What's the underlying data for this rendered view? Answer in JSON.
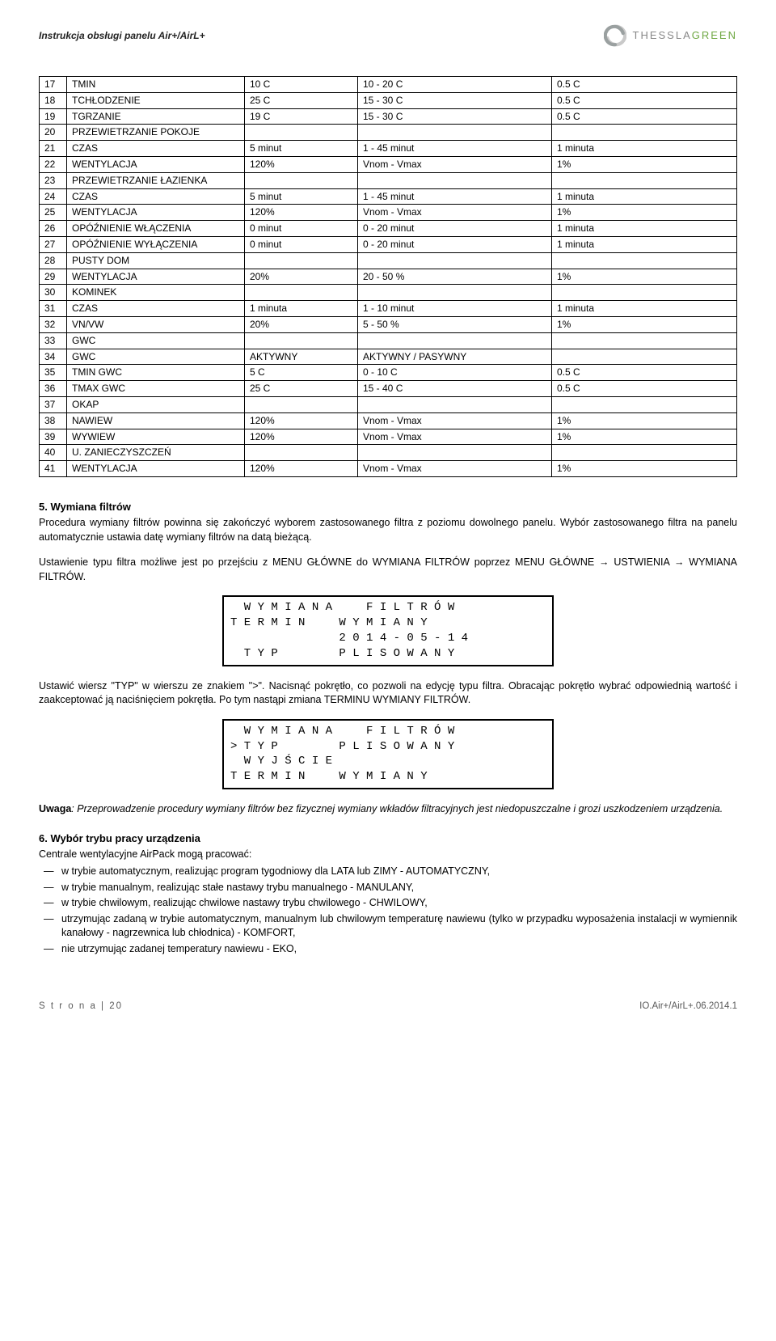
{
  "header": {
    "title_left": "Instrukcja obsługi panelu Air+/AirL+",
    "brand_a": "THESSLA",
    "brand_b": "GREEN"
  },
  "table": {
    "rows": [
      {
        "n": "17",
        "name": "TMIN",
        "v1": "10 C",
        "v2": "10 - 20 C",
        "v3": "0.5 C"
      },
      {
        "n": "18",
        "name": "TCHŁODZENIE",
        "v1": "25 C",
        "v2": "15 - 30 C",
        "v3": "0.5 C"
      },
      {
        "n": "19",
        "name": "TGRZANIE",
        "v1": "19 C",
        "v2": "15 - 30 C",
        "v3": "0.5 C"
      },
      {
        "n": "20",
        "name": "PRZEWIETRZANIE POKOJE",
        "v1": "",
        "v2": "",
        "v3": ""
      },
      {
        "n": "21",
        "name": "CZAS",
        "v1": "5 minut",
        "v2": "1 - 45 minut",
        "v3": "1 minuta"
      },
      {
        "n": "22",
        "name": "WENTYLACJA",
        "v1": "120%",
        "v2": "Vnom - Vmax",
        "v3": "1%"
      },
      {
        "n": "23",
        "name": "PRZEWIETRZANIE ŁAZIENKA",
        "v1": "",
        "v2": "",
        "v3": ""
      },
      {
        "n": "24",
        "name": "CZAS",
        "v1": "5 minut",
        "v2": "1 - 45 minut",
        "v3": "1 minuta"
      },
      {
        "n": "25",
        "name": "WENTYLACJA",
        "v1": "120%",
        "v2": "Vnom - Vmax",
        "v3": "1%"
      },
      {
        "n": "26",
        "name": "OPÓŹNIENIE WŁĄCZENIA",
        "v1": "0 minut",
        "v2": "0 - 20 minut",
        "v3": "1 minuta"
      },
      {
        "n": "27",
        "name": "OPÓŹNIENIE WYŁĄCZENIA",
        "v1": "0 minut",
        "v2": "0 - 20 minut",
        "v3": "1 minuta"
      },
      {
        "n": "28",
        "name": "PUSTY DOM",
        "v1": "",
        "v2": "",
        "v3": ""
      },
      {
        "n": "29",
        "name": "WENTYLACJA",
        "v1": "20%",
        "v2": "20 - 50 %",
        "v3": "1%"
      },
      {
        "n": "30",
        "name": "KOMINEK",
        "v1": "",
        "v2": "",
        "v3": ""
      },
      {
        "n": "31",
        "name": "CZAS",
        "v1": "1 minuta",
        "v2": "1 - 10 minut",
        "v3": "1 minuta"
      },
      {
        "n": "32",
        "name": "VN/VW",
        "v1": "20%",
        "v2": "5 - 50 %",
        "v3": "1%"
      },
      {
        "n": "33",
        "name": "GWC",
        "v1": "",
        "v2": "",
        "v3": ""
      },
      {
        "n": "34",
        "name": "GWC",
        "v1": "AKTYWNY",
        "v2": "AKTYWNY / PASYWNY",
        "v3": ""
      },
      {
        "n": "35",
        "name": "TMIN GWC",
        "v1": "5 C",
        "v2": "0 - 10 C",
        "v3": "0.5 C"
      },
      {
        "n": "36",
        "name": "TMAX GWC",
        "v1": "25 C",
        "v2": "15 - 40 C",
        "v3": "0.5 C"
      },
      {
        "n": "37",
        "name": "OKAP",
        "v1": "",
        "v2": "",
        "v3": ""
      },
      {
        "n": "38",
        "name": "NAWIEW",
        "v1": "120%",
        "v2": "Vnom - Vmax",
        "v3": "1%"
      },
      {
        "n": "39",
        "name": "WYWIEW",
        "v1": "120%",
        "v2": "Vnom - Vmax",
        "v3": "1%"
      },
      {
        "n": "40",
        "name": "U. ZANIECZYSZCZEŃ",
        "v1": "",
        "v2": "",
        "v3": ""
      },
      {
        "n": "41",
        "name": "WENTYLACJA",
        "v1": "120%",
        "v2": "Vnom - Vmax",
        "v3": "1%"
      }
    ]
  },
  "sec5": {
    "title": "5.   Wymiana filtrów",
    "p1": "Procedura wymiany filtrów powinna się zakończyć wyborem zastosowanego filtra z poziomu dowolnego panelu. Wybór zastosowanego filtra na panelu automatycznie ustawia datę wymiany filtrów na datą bieżącą.",
    "p2": "Ustawienie typu filtra możliwe jest po przejściu z MENU GŁÓWNE do WYMIANA FILTRÓW poprzez MENU GŁÓWNE → USTWIENIA → WYMIANA FILTRÓW.",
    "lcd1": [
      "  W Y M I A N A     F I L T R Ó W",
      "T E R M I N     W Y M I A N Y",
      "                2 0 1 4 - 0 5 - 1 4",
      "  T Y P         P L I S O W A N Y"
    ],
    "p3": "Ustawić wiersz \"TYP\" w wierszu ze znakiem \">\". Nacisnąć pokrętło, co pozwoli na edycję typu filtra. Obracając pokrętło wybrać odpowiednią wartość  i zaakceptować ją naciśnięciem pokrętła. Po tym nastąpi zmiana TERMINU WYMIANY FILTRÓW.",
    "lcd2": [
      "  W Y M I A N A     F I L T R Ó W",
      "> T Y P         P L I S O W A N Y",
      "  W Y J Ś C I E",
      "T E R M I N     W Y M I A N Y"
    ],
    "uwaga_label": "Uwaga",
    "uwaga_text": ": Przeprowadzenie procedury wymiany filtrów bez fizycznej wymiany wkładów filtracyjnych jest niedopuszczalne i grozi uszkodzeniem urządzenia."
  },
  "sec6": {
    "title": "6.   Wybór trybu pracy urządzenia",
    "intro": "Centrale wentylacyjne AirPack mogą pracować:",
    "items": [
      "w trybie automatycznym, realizując program tygodniowy dla LATA lub ZIMY - AUTOMATYCZNY,",
      "w trybie manualnym, realizując stałe nastawy trybu manualnego - MANULANY,",
      "w trybie chwilowym, realizując chwilowe nastawy trybu chwilowego - CHWILOWY,",
      "utrzymując zadaną w trybie automatycznym, manualnym lub chwilowym temperaturę nawiewu (tylko w przypadku wyposażenia instalacji w wymiennik kanałowy - nagrzewnica lub chłodnica) - KOMFORT,",
      "nie utrzymując zadanej temperatury nawiewu - EKO,"
    ]
  },
  "footer": {
    "left": "S t r o n a  | 20",
    "right": "IO.Air+/AirL+.06.2014.1"
  }
}
